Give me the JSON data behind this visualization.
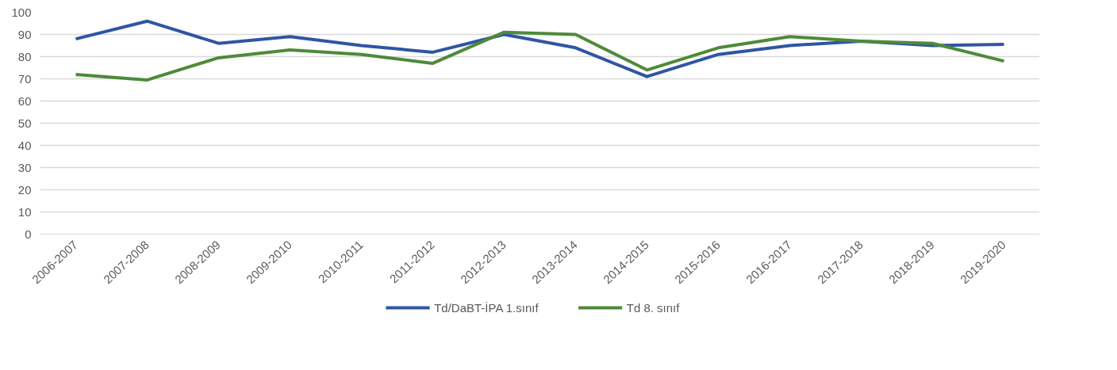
{
  "chart_data": {
    "type": "line",
    "categories": [
      "2006-2007",
      "2007-2008",
      "2008-2009",
      "2009-2010",
      "2010-2011",
      "2011-2012",
      "2012-2013",
      "2013-2014",
      "2014-2015",
      "2015-2016",
      "2016-2017",
      "2017-2018",
      "2018-2019",
      "2019-2020"
    ],
    "series": [
      {
        "name": "Td/DaBT-İPA 1.sınıf",
        "color": "#2f55a4",
        "values": [
          88,
          96,
          86,
          89,
          85,
          82,
          90,
          84,
          71,
          81,
          85,
          87,
          85,
          85.5
        ]
      },
      {
        "name": "Td 8. sınıf",
        "color": "#4e8a3a",
        "values": [
          72,
          69.5,
          79.5,
          83,
          81,
          77,
          91,
          90,
          74,
          84,
          89,
          87,
          86,
          78
        ]
      }
    ],
    "ylim": [
      0,
      100
    ],
    "yticks": [
      0,
      10,
      20,
      30,
      40,
      50,
      60,
      70,
      80,
      90,
      100
    ],
    "grid": "y",
    "legend": "bottom",
    "marker": "none",
    "line_style": "solid"
  }
}
